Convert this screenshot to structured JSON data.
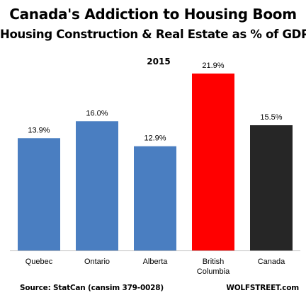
{
  "chart_data": {
    "type": "bar",
    "title": "Canada's Addiction to Housing Boom",
    "subtitle": "Housing Construction & Real Estate as % of GDP",
    "year": "2015",
    "categories": [
      [
        "Quebec"
      ],
      [
        "Ontario"
      ],
      [
        "Alberta"
      ],
      [
        "British",
        "Columbia"
      ],
      [
        "Canada"
      ]
    ],
    "values": [
      13.9,
      16.0,
      12.9,
      21.9,
      15.5
    ],
    "value_labels": [
      "13.9%",
      "16.0%",
      "12.9%",
      "21.9%",
      "15.5%"
    ],
    "colors": [
      "#4a7ec1",
      "#4a7ec1",
      "#4a7ec1",
      "#ff0000",
      "#262626"
    ],
    "ymin": 0,
    "grid": false,
    "legend": "none"
  },
  "footer": {
    "source": "Source: StatCan (cansim 379-0028)",
    "brand": "WOLFSTREET.com"
  }
}
